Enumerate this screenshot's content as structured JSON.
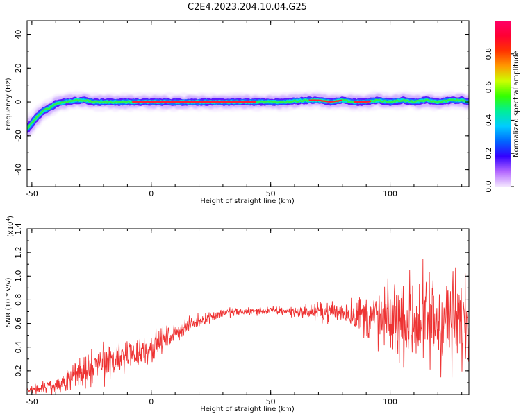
{
  "title": "C2E4.2023.204.10.04.G25",
  "chart_data": [
    {
      "type": "heatmap",
      "xlabel": "Height of straight line (km)",
      "ylabel": "Frequency (Hz)",
      "xlim": [
        -52,
        133
      ],
      "ylim": [
        -50,
        48
      ],
      "x_ticks": [
        "-50",
        "0",
        "50",
        "100"
      ],
      "y_ticks": [
        "-40",
        "-20",
        "0",
        "20",
        "40"
      ],
      "ridge": {
        "x": [
          -52,
          -48,
          -45,
          -42,
          -40,
          -36,
          -32,
          -28,
          -24,
          -20,
          -16,
          -12,
          -8,
          -4,
          0,
          10,
          20,
          30,
          40,
          45,
          55,
          65,
          70,
          75,
          80,
          85,
          90,
          95,
          100,
          105,
          110,
          115,
          120,
          125,
          130,
          133
        ],
        "y": [
          -16,
          -9,
          -5,
          -3,
          -1,
          0,
          1,
          1,
          0,
          0,
          0,
          0,
          0,
          0,
          0,
          0,
          0,
          0,
          0,
          0,
          0,
          1,
          1,
          0,
          1,
          0,
          0,
          1,
          0,
          1,
          0,
          1,
          0,
          1,
          1,
          0
        ]
      },
      "colorbar": {
        "label": "Normalized spectral amplitude",
        "ticks": [
          "0.0",
          "0.2",
          "0.4",
          "0.6",
          "0.8"
        ],
        "range": [
          0,
          1
        ],
        "colors": [
          "#f4e6ff",
          "#b266ff",
          "#3300ff",
          "#0066ff",
          "#00ccff",
          "#00ee99",
          "#33ff00",
          "#ccff00",
          "#ff9900",
          "#ff3300",
          "#ff0033",
          "#ff0066"
        ]
      }
    },
    {
      "type": "line",
      "xlabel": "Height of straight line (km)",
      "ylabel": "SNR (10 * v/v)",
      "multiplier": "(x10",
      "multiplier_exp": "4",
      "multiplier_close": ")",
      "xlim": [
        -52,
        133
      ],
      "ylim": [
        0,
        1.4
      ],
      "x_ticks": [
        "-50",
        "0",
        "50",
        "100"
      ],
      "y_ticks": [
        "0.2",
        "0.4",
        "0.6",
        "0.8",
        "1.0",
        "1.2",
        "1.4"
      ],
      "color": "#ee3333",
      "envelope": {
        "x": [
          -52,
          -45,
          -40,
          -35,
          -30,
          -25,
          -20,
          -15,
          -10,
          -5,
          0,
          5,
          10,
          15,
          20,
          25,
          30,
          40,
          50,
          60,
          70,
          80,
          85,
          90,
          95,
          100,
          105,
          110,
          115,
          120,
          125,
          130,
          133
        ],
        "mean": [
          0.04,
          0.06,
          0.08,
          0.13,
          0.18,
          0.22,
          0.26,
          0.3,
          0.33,
          0.36,
          0.4,
          0.46,
          0.52,
          0.58,
          0.62,
          0.66,
          0.69,
          0.7,
          0.71,
          0.7,
          0.7,
          0.7,
          0.68,
          0.66,
          0.64,
          0.63,
          0.62,
          0.62,
          0.62,
          0.62,
          0.62,
          0.62,
          0.62
        ],
        "amp": [
          0.03,
          0.05,
          0.07,
          0.12,
          0.14,
          0.16,
          0.18,
          0.18,
          0.17,
          0.16,
          0.14,
          0.11,
          0.09,
          0.07,
          0.06,
          0.05,
          0.05,
          0.04,
          0.04,
          0.05,
          0.08,
          0.12,
          0.16,
          0.22,
          0.28,
          0.34,
          0.4,
          0.46,
          0.5,
          0.52,
          0.48,
          0.44,
          0.4
        ]
      }
    }
  ]
}
